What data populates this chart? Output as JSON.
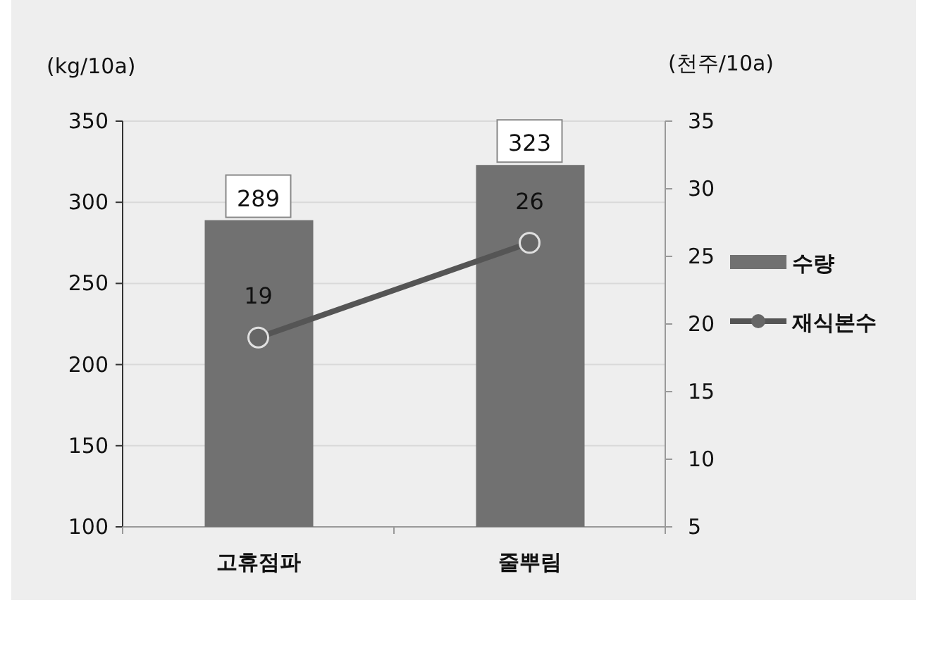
{
  "chart_data": {
    "type": "bar",
    "ylabel": "(kg/10a)",
    "y2label": "(천주/10a)",
    "categories": [
      "고휴점파",
      "줄뿌림"
    ],
    "series": [
      {
        "name": "수량",
        "color": "#717171",
        "values": [
          289,
          323
        ]
      },
      {
        "name": "재식본수",
        "type": "line",
        "axis": "y2",
        "color": "#555555",
        "marker": "circle",
        "values": [
          19,
          26
        ]
      }
    ],
    "ylim": [
      100,
      350
    ],
    "yticks": [
      100,
      150,
      200,
      250,
      300,
      350
    ],
    "y2lim": [
      5,
      35
    ],
    "y2ticks": [
      5,
      10,
      15,
      20,
      25,
      30,
      35
    ],
    "grid": "y",
    "legend": "right",
    "data_labels": true
  }
}
